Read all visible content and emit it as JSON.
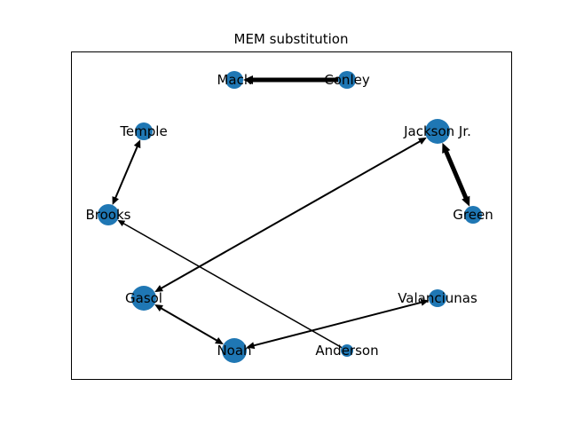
{
  "title": "MEM substitution",
  "colors": {
    "node": "#1f77b4",
    "edge": "#000000",
    "frame": "#000000",
    "background": "#ffffff"
  },
  "nodes": [
    {
      "id": "mack",
      "label": "Mack"
    },
    {
      "id": "conley",
      "label": "Conley"
    },
    {
      "id": "temple",
      "label": "Temple"
    },
    {
      "id": "jackson",
      "label": "Jackson Jr."
    },
    {
      "id": "brooks",
      "label": "Brooks"
    },
    {
      "id": "green",
      "label": "Green"
    },
    {
      "id": "gasol",
      "label": "Gasol"
    },
    {
      "id": "valanciunas",
      "label": "Valanciunas"
    },
    {
      "id": "noah",
      "label": "Noah"
    },
    {
      "id": "anderson",
      "label": "Anderson"
    }
  ],
  "edges": [
    {
      "from": "conley",
      "to": "mack",
      "directed": "one-way",
      "weight": "heavy"
    },
    {
      "from": "jackson",
      "to": "green",
      "directed": "both",
      "weight": "heavy"
    },
    {
      "from": "temple",
      "to": "brooks",
      "directed": "both",
      "weight": "normal"
    },
    {
      "from": "gasol",
      "to": "jackson",
      "directed": "both",
      "weight": "normal"
    },
    {
      "from": "anderson",
      "to": "brooks",
      "directed": "one-way",
      "weight": "light"
    },
    {
      "from": "gasol",
      "to": "noah",
      "directed": "both",
      "weight": "normal"
    },
    {
      "from": "noah",
      "to": "valanciunas",
      "directed": "both",
      "weight": "normal"
    }
  ]
}
